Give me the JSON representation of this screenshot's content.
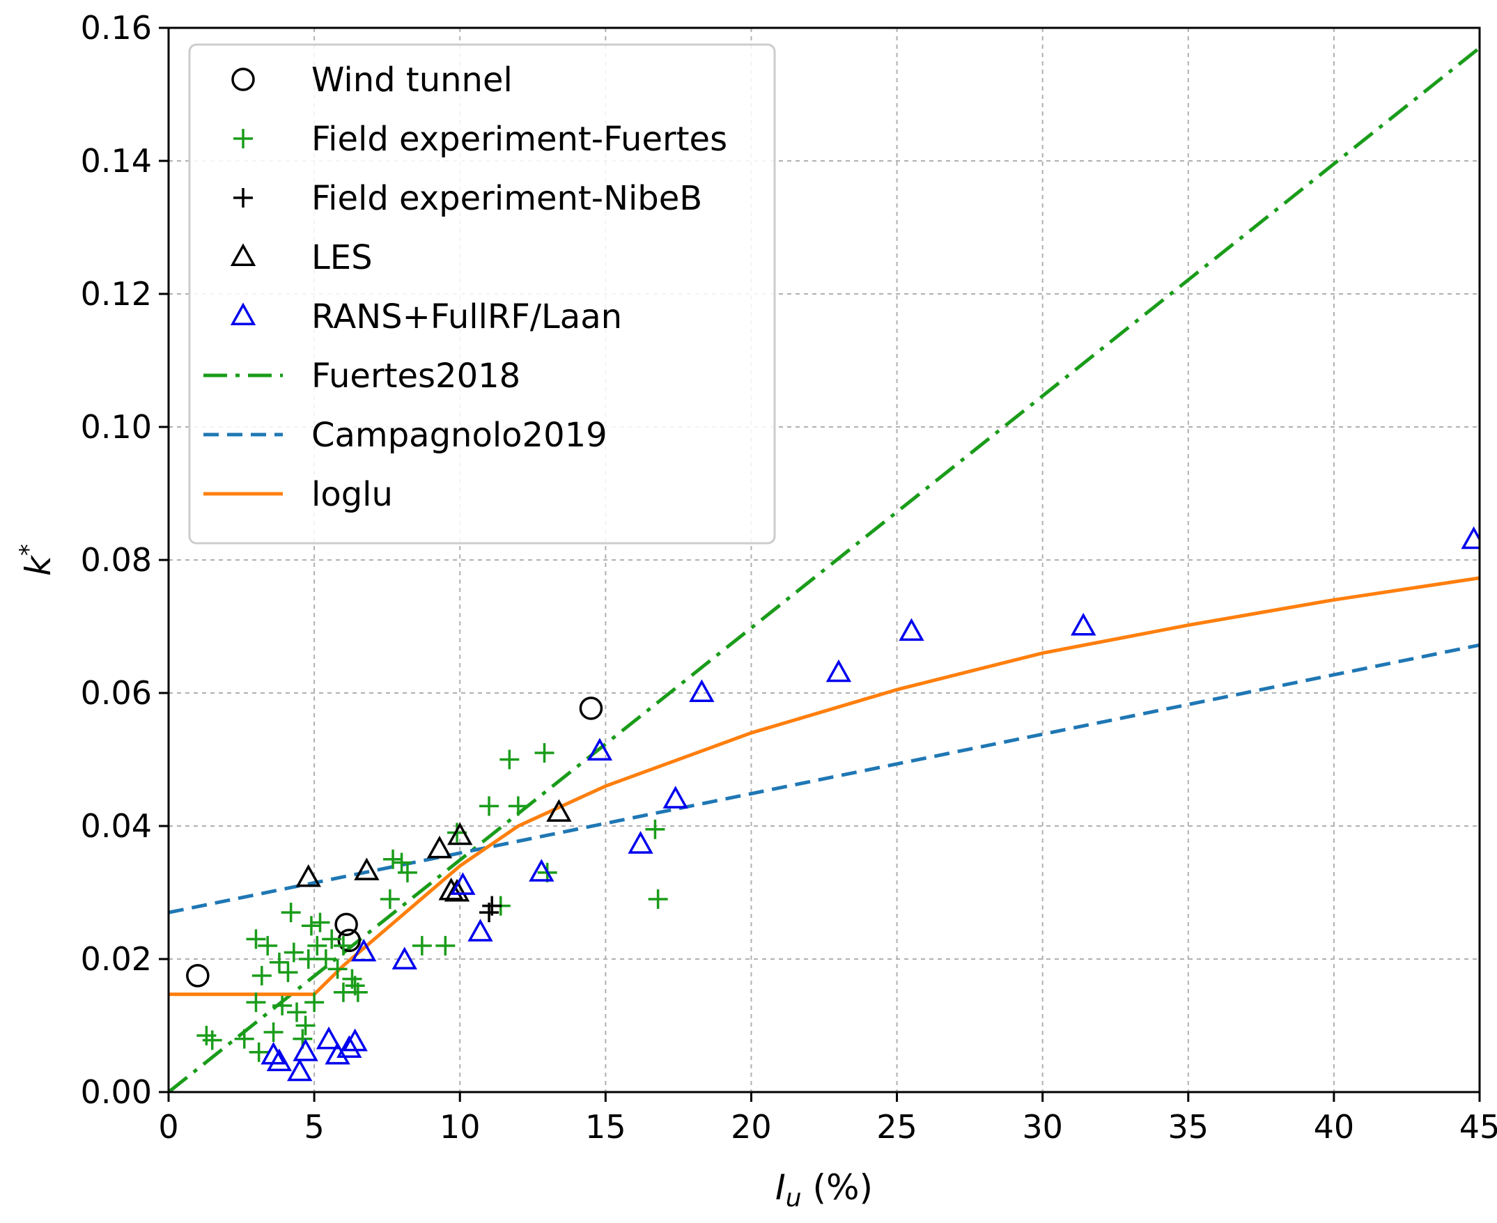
{
  "chart_data": {
    "type": "scatter",
    "xlabel": "I",
    "xlabel_sub": "u",
    "xlabel_unit": " (%)",
    "ylabel": "k",
    "ylabel_sup": "*",
    "xlim": [
      0,
      45
    ],
    "ylim": [
      0,
      0.16
    ],
    "xticks": [
      0,
      5,
      10,
      15,
      20,
      25,
      30,
      35,
      40,
      45
    ],
    "yticks": [
      0.0,
      0.02,
      0.04,
      0.06,
      0.08,
      0.1,
      0.12,
      0.14,
      0.16
    ],
    "xtick_labels": [
      "0",
      "5",
      "10",
      "15",
      "20",
      "25",
      "30",
      "35",
      "40",
      "45"
    ],
    "ytick_labels": [
      "0.00",
      "0.02",
      "0.04",
      "0.06",
      "0.08",
      "0.10",
      "0.12",
      "0.14",
      "0.16"
    ],
    "grid": true,
    "legend_position": "top-left",
    "series": [
      {
        "name": "Wind tunnel",
        "kind": "scatter",
        "marker": "circle",
        "color": "#000000",
        "points": [
          [
            1.0,
            0.0175
          ],
          [
            6.1,
            0.0252
          ],
          [
            6.2,
            0.0228
          ],
          [
            14.5,
            0.0577
          ]
        ]
      },
      {
        "name": "Field experiment-Fuertes",
        "kind": "scatter",
        "marker": "plus",
        "color": "#1a9c1a",
        "points": [
          [
            1.3,
            0.0085
          ],
          [
            1.5,
            0.0078
          ],
          [
            2.6,
            0.008
          ],
          [
            3.0,
            0.0135
          ],
          [
            3.0,
            0.023
          ],
          [
            3.1,
            0.006
          ],
          [
            3.2,
            0.0175
          ],
          [
            3.4,
            0.022
          ],
          [
            3.6,
            0.009
          ],
          [
            3.8,
            0.0195
          ],
          [
            3.9,
            0.013
          ],
          [
            4.1,
            0.018
          ],
          [
            4.2,
            0.027
          ],
          [
            4.3,
            0.021
          ],
          [
            4.4,
            0.012
          ],
          [
            4.6,
            0.008
          ],
          [
            4.7,
            0.01
          ],
          [
            4.8,
            0.02
          ],
          [
            4.9,
            0.025
          ],
          [
            5.0,
            0.0135
          ],
          [
            5.1,
            0.022
          ],
          [
            5.2,
            0.0255
          ],
          [
            5.4,
            0.02
          ],
          [
            5.6,
            0.023
          ],
          [
            5.8,
            0.0185
          ],
          [
            6.0,
            0.015
          ],
          [
            6.0,
            0.022
          ],
          [
            6.3,
            0.017
          ],
          [
            6.4,
            0.016
          ],
          [
            6.5,
            0.015
          ],
          [
            7.6,
            0.029
          ],
          [
            7.7,
            0.035
          ],
          [
            8.0,
            0.0345
          ],
          [
            8.2,
            0.033
          ],
          [
            8.7,
            0.022
          ],
          [
            9.5,
            0.022
          ],
          [
            9.9,
            0.039
          ],
          [
            11.0,
            0.043
          ],
          [
            11.4,
            0.028
          ],
          [
            11.7,
            0.05
          ],
          [
            12.0,
            0.043
          ],
          [
            12.9,
            0.051
          ],
          [
            13.0,
            0.033
          ],
          [
            16.7,
            0.0395
          ],
          [
            16.8,
            0.029
          ]
        ]
      },
      {
        "name": "Field experiment-NibeB",
        "kind": "scatter",
        "marker": "plus",
        "color": "#000000",
        "points": [
          [
            11.0,
            0.027
          ],
          [
            11.1,
            0.028
          ]
        ]
      },
      {
        "name": "LES",
        "kind": "scatter",
        "marker": "triangle",
        "color": "#000000",
        "points": [
          [
            4.8,
            0.0322
          ],
          [
            6.8,
            0.0332
          ],
          [
            9.3,
            0.0365
          ],
          [
            9.7,
            0.0302
          ],
          [
            9.9,
            0.03
          ],
          [
            10.0,
            0.0385
          ],
          [
            13.4,
            0.042
          ]
        ]
      },
      {
        "name": "RANS+FullRF/Laan",
        "kind": "scatter",
        "marker": "triangle",
        "color": "#0000ee",
        "points": [
          [
            3.6,
            0.0055
          ],
          [
            3.8,
            0.0045
          ],
          [
            4.5,
            0.003
          ],
          [
            4.7,
            0.006
          ],
          [
            5.5,
            0.0078
          ],
          [
            5.8,
            0.0055
          ],
          [
            6.2,
            0.0065
          ],
          [
            6.4,
            0.0075
          ],
          [
            6.7,
            0.021
          ],
          [
            8.1,
            0.0198
          ],
          [
            10.1,
            0.031
          ],
          [
            10.7,
            0.024
          ],
          [
            12.8,
            0.033
          ],
          [
            14.8,
            0.0512
          ],
          [
            16.2,
            0.0372
          ],
          [
            17.4,
            0.044
          ],
          [
            18.3,
            0.06
          ],
          [
            23.0,
            0.063
          ],
          [
            25.5,
            0.0692
          ],
          [
            31.4,
            0.07
          ],
          [
            44.8,
            0.083
          ]
        ]
      },
      {
        "name": "Fuertes2018",
        "kind": "line",
        "style": "dashdot",
        "color": "#1a9c1a",
        "points": [
          [
            0,
            0
          ],
          [
            45,
            0.157
          ]
        ]
      },
      {
        "name": "Campagnolo2019",
        "kind": "line",
        "style": "dashed",
        "color": "#1f77b4",
        "points": [
          [
            0,
            0.027
          ],
          [
            45,
            0.0672
          ]
        ]
      },
      {
        "name": "loglu",
        "kind": "line",
        "style": "solid",
        "color": "#ff7f0e",
        "points": [
          [
            0,
            0.0147
          ],
          [
            5,
            0.0147
          ],
          [
            6,
            0.019
          ],
          [
            8,
            0.0265
          ],
          [
            10,
            0.034
          ],
          [
            12,
            0.04
          ],
          [
            15,
            0.046
          ],
          [
            20,
            0.054
          ],
          [
            25,
            0.0605
          ],
          [
            30,
            0.066
          ],
          [
            35,
            0.0702
          ],
          [
            40,
            0.074
          ],
          [
            45,
            0.0773
          ]
        ]
      }
    ]
  }
}
